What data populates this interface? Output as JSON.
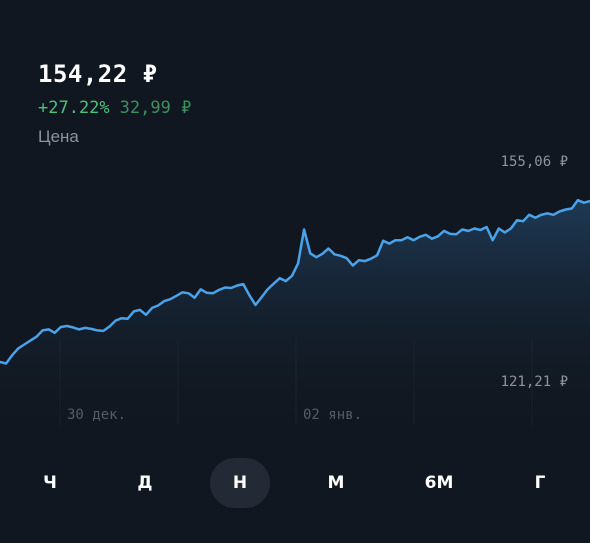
{
  "price": "154,22 ₽",
  "change_pct": "+27.22%",
  "change_abs": "32,99 ₽",
  "price_label": "Цена",
  "colors": {
    "line": "#4aa3ea",
    "positive": "#4cc27a",
    "background": "#111720"
  },
  "chart_data": {
    "type": "area",
    "y_max_label": "155,06 ₽",
    "y_min_label": "121,21 ₽",
    "x_labels": [
      "30 дек.",
      "02 янв."
    ],
    "ylim": [
      121.21,
      155.06
    ],
    "grid": false,
    "values": [
      121.21,
      120.9,
      122.6,
      124.0,
      124.8,
      125.6,
      126.4,
      127.7,
      127.9,
      127.2,
      128.4,
      128.6,
      128.3,
      127.9,
      128.2,
      128.0,
      127.7,
      127.6,
      128.5,
      129.7,
      130.2,
      130.1,
      131.6,
      131.9,
      130.9,
      132.3,
      132.8,
      133.7,
      134.1,
      134.8,
      135.5,
      135.3,
      134.4,
      136.1,
      135.4,
      135.3,
      136.0,
      136.5,
      136.4,
      136.9,
      137.2,
      134.9,
      132.9,
      134.5,
      136.1,
      137.3,
      138.4,
      137.8,
      138.9,
      141.4,
      148.4,
      143.5,
      142.7,
      143.4,
      144.5,
      143.3,
      143.0,
      142.5,
      141.0,
      142.1,
      141.9,
      142.4,
      143.1,
      146.1,
      145.5,
      146.2,
      146.2,
      146.8,
      146.2,
      146.9,
      147.3,
      146.5,
      147.0,
      148.1,
      147.5,
      147.4,
      148.4,
      148.1,
      148.6,
      148.3,
      148.9,
      146.2,
      148.6,
      147.8,
      148.6,
      150.3,
      150.1,
      151.4,
      150.8,
      151.4,
      151.7,
      151.4,
      152.1,
      152.5,
      152.7,
      154.4,
      153.9,
      154.22
    ]
  },
  "periods": [
    {
      "label": "Ч",
      "active": false
    },
    {
      "label": "Д",
      "active": false
    },
    {
      "label": "Н",
      "active": true
    },
    {
      "label": "М",
      "active": false
    },
    {
      "label": "6М",
      "active": false
    },
    {
      "label": "Г",
      "active": false
    }
  ]
}
